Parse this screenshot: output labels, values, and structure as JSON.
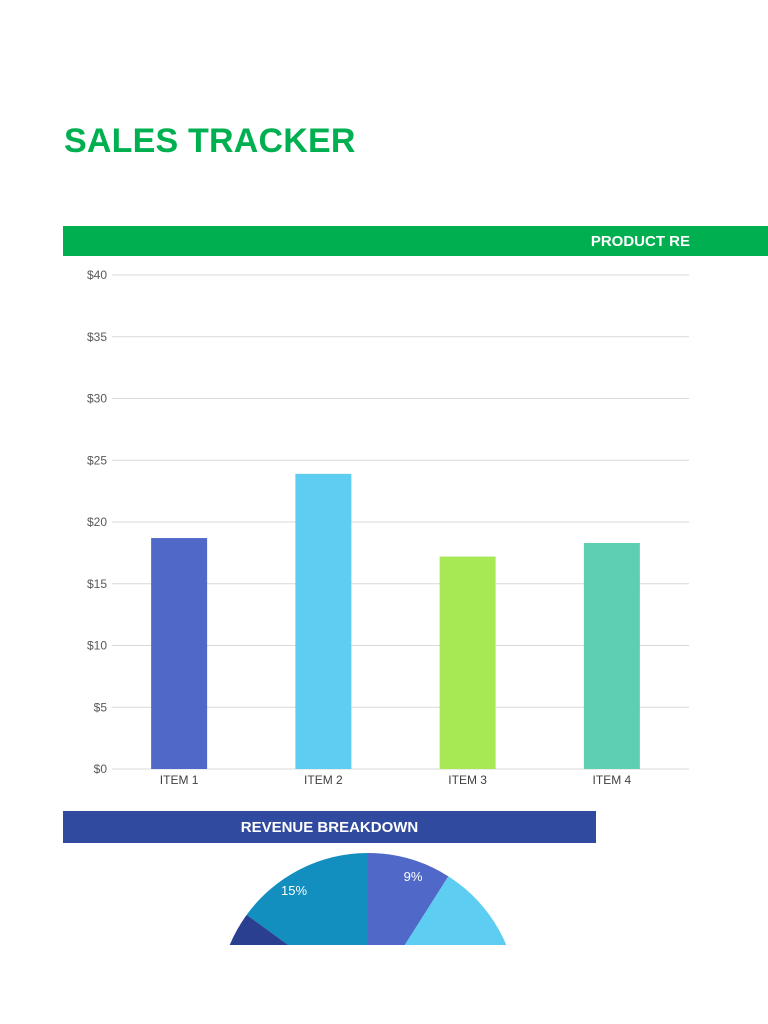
{
  "page": {
    "title": "SALES TRACKER"
  },
  "sections": {
    "product_header": "PRODUCT RE",
    "revenue_header": "REVENUE BREAKDOWN"
  },
  "colors": {
    "title_green": "#00b050",
    "header_green": "#00b050",
    "header_blue": "#2f4a9e"
  },
  "chart_data": [
    {
      "type": "bar",
      "categories": [
        "ITEM 1",
        "ITEM 2",
        "ITEM 3",
        "ITEM 4"
      ],
      "values": [
        18.7,
        23.9,
        17.2,
        18.3
      ],
      "colors": [
        "#5069c8",
        "#5ecdf2",
        "#a7e954",
        "#5ed0b1"
      ],
      "ylim": [
        0,
        40
      ],
      "yticks": [
        0,
        5,
        10,
        15,
        20,
        25,
        30,
        35,
        40
      ],
      "ytick_labels": [
        "$0",
        "$5",
        "$10",
        "$15",
        "$20",
        "$25",
        "$30",
        "$35",
        "$40"
      ],
      "grid": true,
      "legend": "none"
    },
    {
      "type": "pie",
      "visible_slices": [
        {
          "label": "9%",
          "value": 9,
          "color": "#5069c8"
        },
        {
          "label": "",
          "value": null,
          "color": "#5ecdf2"
        },
        {
          "label": "15%",
          "value": 15,
          "color": "#128ebf"
        },
        {
          "label": "",
          "value": null,
          "color": "#2a3f8f"
        }
      ],
      "note_cropped": true
    }
  ]
}
